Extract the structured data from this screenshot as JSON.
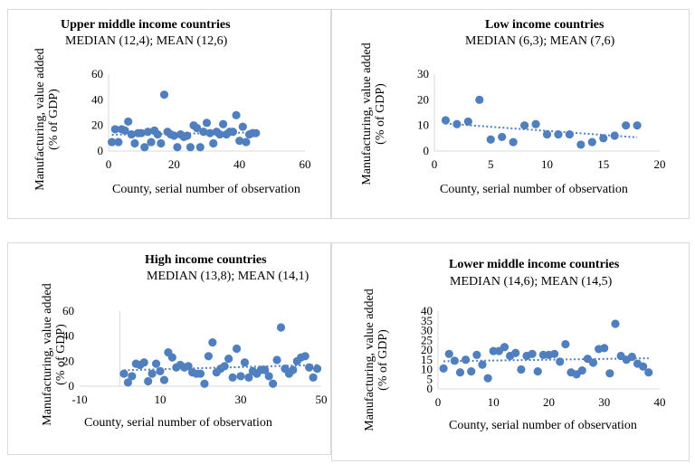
{
  "chart_data": [
    {
      "type": "scatter",
      "title": "Upper middle income countries",
      "subtitle": "MEDIAN (12,4); MEAN (12,6)",
      "xlabel": "County, serial number of observation",
      "ylabel": "Manufacturing, value added (% of GDP)",
      "xlim": [
        0,
        60
      ],
      "ylim": [
        0,
        60
      ],
      "xticks": [
        0,
        20,
        40,
        60
      ],
      "yticks": [
        0,
        20,
        40,
        60
      ],
      "trendline": "dotted linear",
      "series": [
        {
          "x": [
            1,
            2,
            3,
            4,
            5,
            6,
            7,
            8,
            9,
            10,
            11,
            12,
            13,
            14,
            15,
            16,
            17,
            18,
            19,
            20,
            21,
            22,
            23,
            24,
            25,
            26,
            27,
            28,
            29,
            30,
            31,
            32,
            33,
            34,
            35,
            36,
            37,
            38,
            39,
            40,
            41,
            42,
            43,
            44,
            45
          ],
          "y": [
            7,
            17,
            7,
            17,
            16,
            23,
            13,
            6,
            14,
            14,
            3,
            15,
            7,
            16,
            13,
            6,
            44,
            15,
            13,
            12,
            3,
            13,
            11,
            12,
            3,
            20,
            18,
            3,
            15,
            22,
            14,
            6,
            15,
            13,
            21,
            13,
            15,
            15,
            28,
            8,
            19,
            7,
            13,
            14,
            14
          ]
        }
      ]
    },
    {
      "type": "scatter",
      "title": "Low income countries",
      "subtitle": "MEDIAN (6,3); MEAN (7,6)",
      "xlabel": "County, serial number of observation",
      "ylabel": "Manufacturing, value added (% of GDP)",
      "xlim": [
        0,
        20
      ],
      "ylim": [
        0,
        30
      ],
      "xticks": [
        0,
        5,
        10,
        15,
        20
      ],
      "yticks": [
        0,
        10,
        20,
        30
      ],
      "trendline": "dotted linear",
      "series": [
        {
          "x": [
            1,
            2,
            3,
            4,
            5,
            6,
            7,
            8,
            9,
            10,
            11,
            12,
            13,
            14,
            15,
            16,
            17,
            18
          ],
          "y": [
            12,
            10.5,
            11.5,
            20,
            4.5,
            5.5,
            3.5,
            10,
            10.5,
            6.5,
            6.5,
            6.5,
            2.5,
            3.5,
            5,
            6,
            10,
            10
          ]
        }
      ]
    },
    {
      "type": "scatter",
      "title": "High income countries",
      "subtitle": "MEDIAN (13,8); MEAN (14,1)",
      "xlabel": "County, serial number of observation",
      "ylabel": "Manufacturing, value added (% of GDP)",
      "xlim": [
        -10,
        50
      ],
      "ylim": [
        0,
        60
      ],
      "xticks": [
        -10,
        10,
        30,
        50
      ],
      "yticks": [
        0,
        20,
        40,
        60
      ],
      "trendline": "dotted linear",
      "series": [
        {
          "x": [
            1,
            2,
            3,
            4,
            5,
            6,
            7,
            8,
            9,
            10,
            11,
            12,
            13,
            14,
            15,
            16,
            17,
            18,
            19,
            20,
            21,
            22,
            23,
            24,
            25,
            26,
            27,
            28,
            29,
            30,
            31,
            32,
            33,
            34,
            35,
            36,
            37,
            38,
            39,
            40,
            41,
            42,
            43,
            44,
            45,
            46,
            47,
            48,
            49
          ],
          "y": [
            10,
            3,
            8,
            18,
            17,
            19,
            4,
            10,
            18,
            12,
            5,
            27,
            23,
            15,
            17,
            15,
            16,
            11,
            10,
            10,
            2,
            24,
            35,
            11,
            14,
            16,
            22,
            7,
            30,
            8,
            19,
            7,
            12,
            10,
            13,
            13,
            8,
            2,
            21,
            47,
            14,
            10,
            13,
            20,
            23,
            24,
            15,
            7,
            14
          ]
        }
      ]
    },
    {
      "type": "scatter",
      "title": "Lower middle income countries",
      "subtitle": "MEDIAN (14,6); MEAN (14,5)",
      "xlabel": "County, serial number of observation",
      "ylabel": "Manufacturing, value added (% of GDP)",
      "xlim": [
        0,
        40
      ],
      "ylim": [
        0,
        40
      ],
      "xticks": [
        0,
        10,
        20,
        30,
        40
      ],
      "yticks": [
        0,
        5,
        10,
        15,
        20,
        25,
        30,
        35,
        40
      ],
      "trendline": "dotted linear",
      "series": [
        {
          "x": [
            1,
            2,
            3,
            4,
            5,
            6,
            7,
            8,
            9,
            10,
            11,
            12,
            13,
            14,
            15,
            16,
            17,
            18,
            19,
            20,
            21,
            22,
            23,
            24,
            25,
            26,
            27,
            28,
            29,
            30,
            31,
            32,
            33,
            34,
            35,
            36,
            37,
            38
          ],
          "y": [
            10.5,
            18,
            14.5,
            8.5,
            15,
            9,
            17.5,
            12.5,
            5.5,
            19.5,
            19.5,
            21.5,
            17,
            18.5,
            10,
            17,
            18,
            9,
            17.5,
            17.5,
            18,
            14,
            23,
            8.5,
            7.5,
            9.5,
            15.5,
            13.5,
            20.5,
            21,
            8,
            33.5,
            17,
            15,
            16.5,
            13,
            11.5,
            8.5
          ]
        }
      ]
    }
  ],
  "colors": {
    "marker": "#4f7fbf",
    "trendline": "#4f7fbf",
    "axis": "#d9d9d9"
  }
}
